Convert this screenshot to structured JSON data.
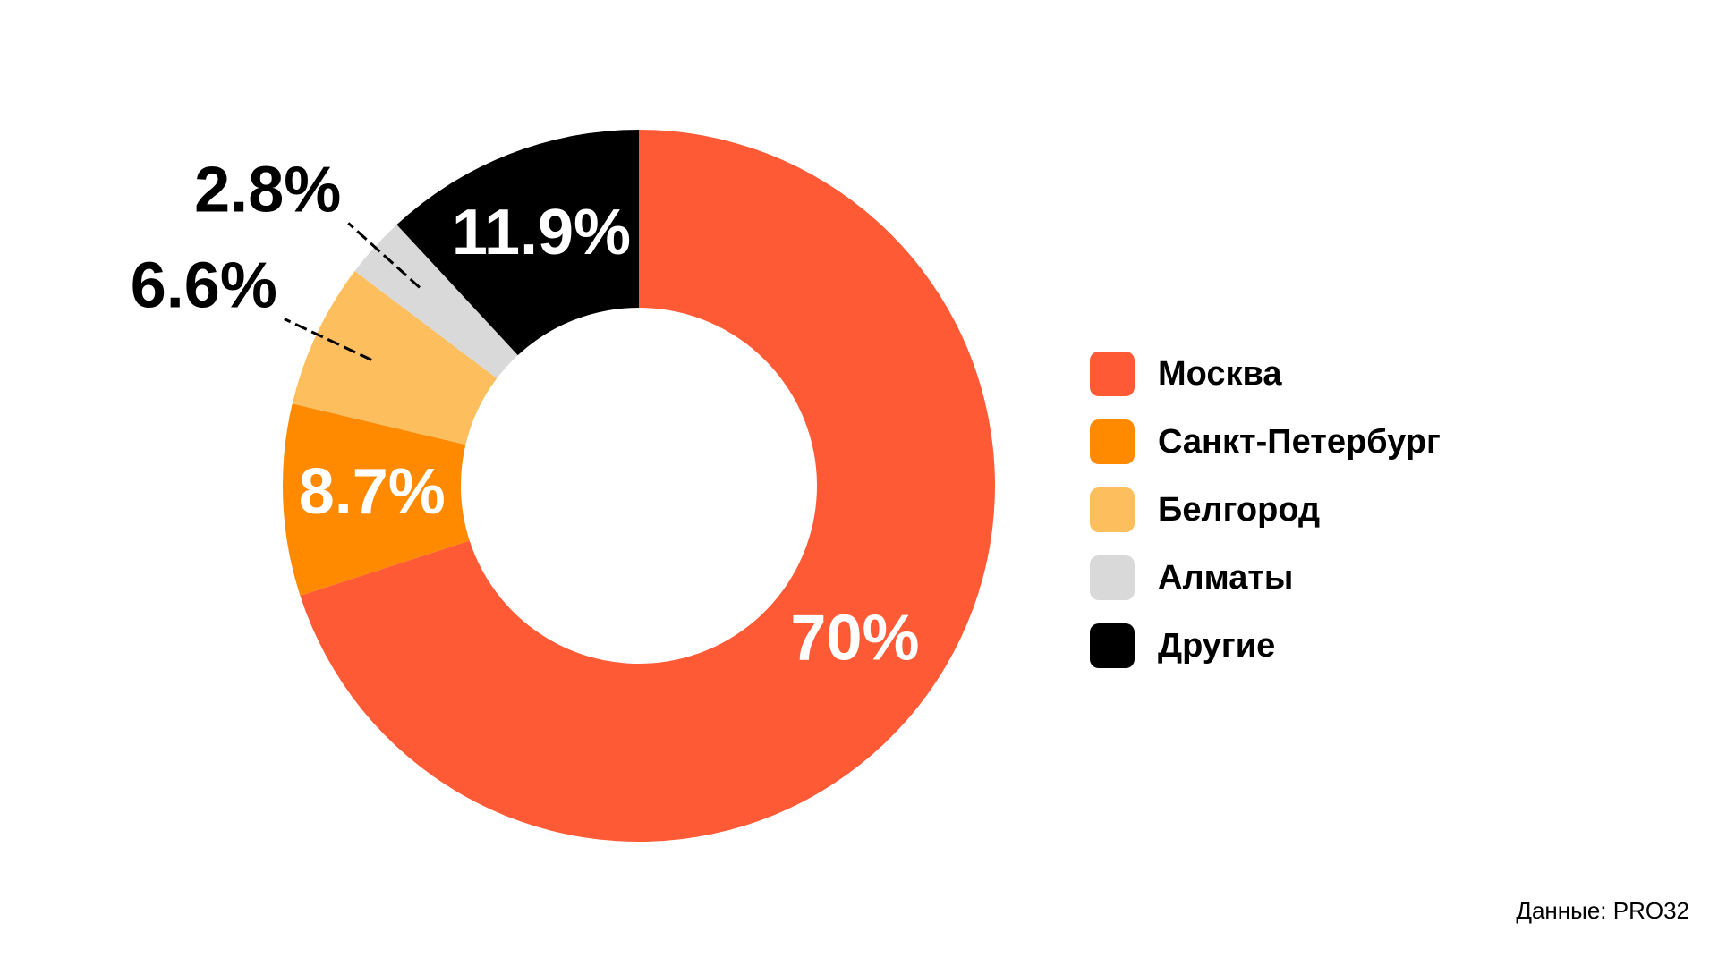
{
  "chart_data": {
    "type": "donut",
    "categories": [
      "Москва",
      "Санкт-Петербург",
      "Белгород",
      "Алматы",
      "Другие"
    ],
    "values": [
      70,
      8.7,
      6.6,
      2.8,
      11.9
    ],
    "value_labels": [
      "70%",
      "8.7%",
      "6.6%",
      "2.8%",
      "11.9%"
    ],
    "colors": [
      "#ff5a36",
      "#ff8a00",
      "#fdbe5d",
      "#d9d9d9",
      "#000000"
    ],
    "source": "Данные: PRO32"
  }
}
